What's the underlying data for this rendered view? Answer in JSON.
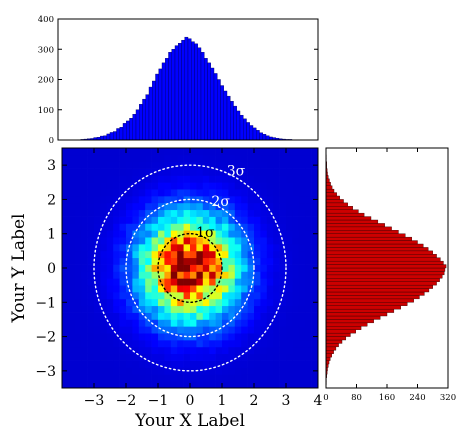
{
  "chart_data": [
    {
      "type": "bar",
      "panel": "top-marginal-histogram",
      "orientation": "vertical",
      "bar_color": "#0000ff",
      "edge_color": "#000066",
      "xlim": [
        -4,
        4
      ],
      "ylim": [
        0,
        400
      ],
      "y_ticks": [
        "0",
        "100",
        "200",
        "300",
        "400"
      ],
      "bin_width": 0.1,
      "x": [
        -3.45,
        -3.35,
        -3.25,
        -3.15,
        -3.05,
        -2.95,
        -2.85,
        -2.75,
        -2.65,
        -2.55,
        -2.45,
        -2.35,
        -2.25,
        -2.15,
        -2.05,
        -1.95,
        -1.85,
        -1.75,
        -1.65,
        -1.55,
        -1.45,
        -1.35,
        -1.25,
        -1.15,
        -1.05,
        -0.95,
        -0.85,
        -0.75,
        -0.65,
        -0.55,
        -0.45,
        -0.35,
        -0.25,
        -0.15,
        -0.05,
        0.05,
        0.15,
        0.25,
        0.35,
        0.45,
        0.55,
        0.65,
        0.75,
        0.85,
        0.95,
        1.05,
        1.15,
        1.25,
        1.35,
        1.45,
        1.55,
        1.65,
        1.75,
        1.85,
        1.95,
        2.05,
        2.15,
        2.25,
        2.35,
        2.45,
        2.55,
        2.65,
        2.75,
        2.85,
        2.95,
        3.05,
        3.15,
        3.25,
        3.35,
        3.45,
        3.55,
        3.65,
        3.75,
        3.85,
        3.95
      ],
      "values": [
        0,
        1,
        2,
        3,
        4,
        5,
        8,
        9,
        13,
        14,
        20,
        25,
        28,
        38,
        42,
        55,
        63,
        72,
        85,
        100,
        118,
        135,
        150,
        175,
        195,
        218,
        235,
        255,
        270,
        290,
        300,
        312,
        320,
        330,
        340,
        335,
        325,
        318,
        305,
        290,
        270,
        255,
        238,
        220,
        200,
        180,
        162,
        145,
        128,
        112,
        96,
        82,
        70,
        58,
        48,
        40,
        32,
        24,
        19,
        14,
        10,
        8,
        6,
        4,
        3,
        2,
        2,
        1,
        1,
        1,
        0,
        0,
        0,
        0,
        0
      ]
    },
    {
      "type": "bar",
      "panel": "right-marginal-histogram",
      "orientation": "horizontal",
      "bar_color": "#cc0000",
      "edge_color": "#330000",
      "xlim": [
        0,
        320
      ],
      "ylim": [
        -3.5,
        3.5
      ],
      "x_ticks": [
        "0",
        "80",
        "160",
        "240",
        "320"
      ],
      "bin_width": 0.1,
      "y": [
        -3.45,
        -3.35,
        -3.25,
        -3.15,
        -3.05,
        -2.95,
        -2.85,
        -2.75,
        -2.65,
        -2.55,
        -2.45,
        -2.35,
        -2.25,
        -2.15,
        -2.05,
        -1.95,
        -1.85,
        -1.75,
        -1.65,
        -1.55,
        -1.45,
        -1.35,
        -1.25,
        -1.15,
        -1.05,
        -0.95,
        -0.85,
        -0.75,
        -0.65,
        -0.55,
        -0.45,
        -0.35,
        -0.25,
        -0.15,
        -0.05,
        0.05,
        0.15,
        0.25,
        0.35,
        0.45,
        0.55,
        0.65,
        0.75,
        0.85,
        0.95,
        1.05,
        1.15,
        1.25,
        1.35,
        1.45,
        1.55,
        1.65,
        1.75,
        1.85,
        1.95,
        2.05,
        2.15,
        2.25,
        2.35,
        2.45,
        2.55,
        2.65,
        2.75,
        2.85,
        2.95,
        3.05,
        3.15,
        3.25,
        3.35,
        3.45
      ],
      "values": [
        0,
        1,
        1,
        2,
        3,
        4,
        6,
        8,
        11,
        15,
        20,
        26,
        33,
        42,
        52,
        64,
        78,
        92,
        108,
        125,
        142,
        160,
        178,
        196,
        213,
        230,
        245,
        258,
        270,
        280,
        290,
        298,
        305,
        310,
        312,
        315,
        308,
        300,
        290,
        280,
        268,
        255,
        240,
        225,
        208,
        190,
        172,
        154,
        136,
        118,
        100,
        85,
        70,
        57,
        46,
        36,
        28,
        21,
        16,
        12,
        9,
        6,
        4,
        3,
        2,
        2,
        1,
        1,
        0,
        0
      ]
    },
    {
      "type": "heatmap",
      "panel": "main-2d-histogram",
      "xlabel": "Your X Label",
      "ylabel": "Your Y Label",
      "xlim": [
        -4,
        4
      ],
      "ylim": [
        -3.5,
        3.5
      ],
      "x_ticks": [
        "−3",
        "−2",
        "−1",
        "0",
        "1",
        "2",
        "3",
        "4"
      ],
      "y_ticks": [
        "−3",
        "−2",
        "−1",
        "0",
        "1",
        "2",
        "3"
      ],
      "colormap": "jet",
      "distribution": {
        "center": [
          0,
          0
        ],
        "sigma": [
          1,
          1
        ],
        "bins": [
          40,
          35
        ]
      },
      "sigma_contours": [
        {
          "label": "1σ",
          "radius": 1,
          "color": "#000000"
        },
        {
          "label": "2σ",
          "radius": 2,
          "color": "#ffffff"
        },
        {
          "label": "3σ",
          "radius": 3,
          "color": "#ffffff"
        }
      ],
      "annotations": [
        "1σ",
        "2σ",
        "3σ"
      ]
    }
  ]
}
